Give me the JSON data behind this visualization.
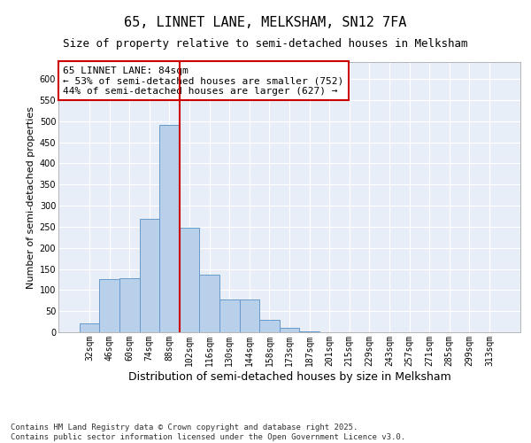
{
  "title1": "65, LINNET LANE, MELKSHAM, SN12 7FA",
  "title2": "Size of property relative to semi-detached houses in Melksham",
  "xlabel": "Distribution of semi-detached houses by size in Melksham",
  "ylabel": "Number of semi-detached properties",
  "categories": [
    "32sqm",
    "46sqm",
    "60sqm",
    "74sqm",
    "88sqm",
    "102sqm",
    "116sqm",
    "130sqm",
    "144sqm",
    "158sqm",
    "173sqm",
    "187sqm",
    "201sqm",
    "215sqm",
    "229sqm",
    "243sqm",
    "257sqm",
    "271sqm",
    "285sqm",
    "299sqm",
    "313sqm"
  ],
  "values": [
    22,
    125,
    128,
    268,
    490,
    248,
    137,
    78,
    78,
    30,
    10,
    2,
    1,
    1,
    1,
    0,
    0,
    0,
    0,
    1,
    0
  ],
  "bar_color": "#b8d0ea",
  "bar_edge_color": "#6699cc",
  "vline_x": 4.5,
  "vline_color": "#cc0000",
  "annotation_text": "65 LINNET LANE: 84sqm\n← 53% of semi-detached houses are smaller (752)\n44% of semi-detached houses are larger (627) →",
  "annotation_box_color": "#ffffff",
  "annotation_box_edge": "#cc0000",
  "ylim": [
    0,
    640
  ],
  "yticks": [
    0,
    50,
    100,
    150,
    200,
    250,
    300,
    350,
    400,
    450,
    500,
    550,
    600
  ],
  "background_color": "#e8eef8",
  "grid_color": "#ffffff",
  "footer": "Contains HM Land Registry data © Crown copyright and database right 2025.\nContains public sector information licensed under the Open Government Licence v3.0.",
  "title1_fontsize": 11,
  "title2_fontsize": 9,
  "xlabel_fontsize": 9,
  "ylabel_fontsize": 8,
  "tick_fontsize": 7,
  "annotation_fontsize": 8,
  "footer_fontsize": 6.5
}
